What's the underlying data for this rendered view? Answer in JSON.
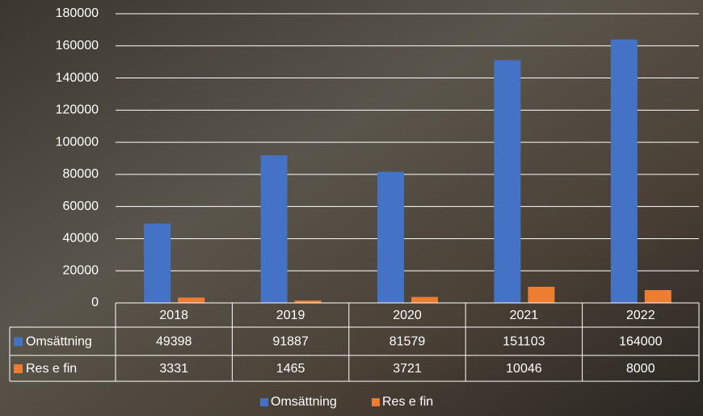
{
  "chart_data": {
    "type": "bar",
    "categories": [
      "2018",
      "2019",
      "2020",
      "2021",
      "2022"
    ],
    "series": [
      {
        "name": "Omsättning",
        "color": "#4472c4",
        "values": [
          49398,
          91887,
          81579,
          151103,
          164000
        ]
      },
      {
        "name": "Res e fin",
        "color": "#ed7d31",
        "values": [
          3331,
          1465,
          3721,
          10046,
          8000
        ]
      }
    ],
    "ylim": [
      0,
      180000
    ],
    "yticks": [
      0,
      20000,
      40000,
      60000,
      80000,
      100000,
      120000,
      140000,
      160000,
      180000
    ],
    "grid": true,
    "legend": "bottom"
  }
}
